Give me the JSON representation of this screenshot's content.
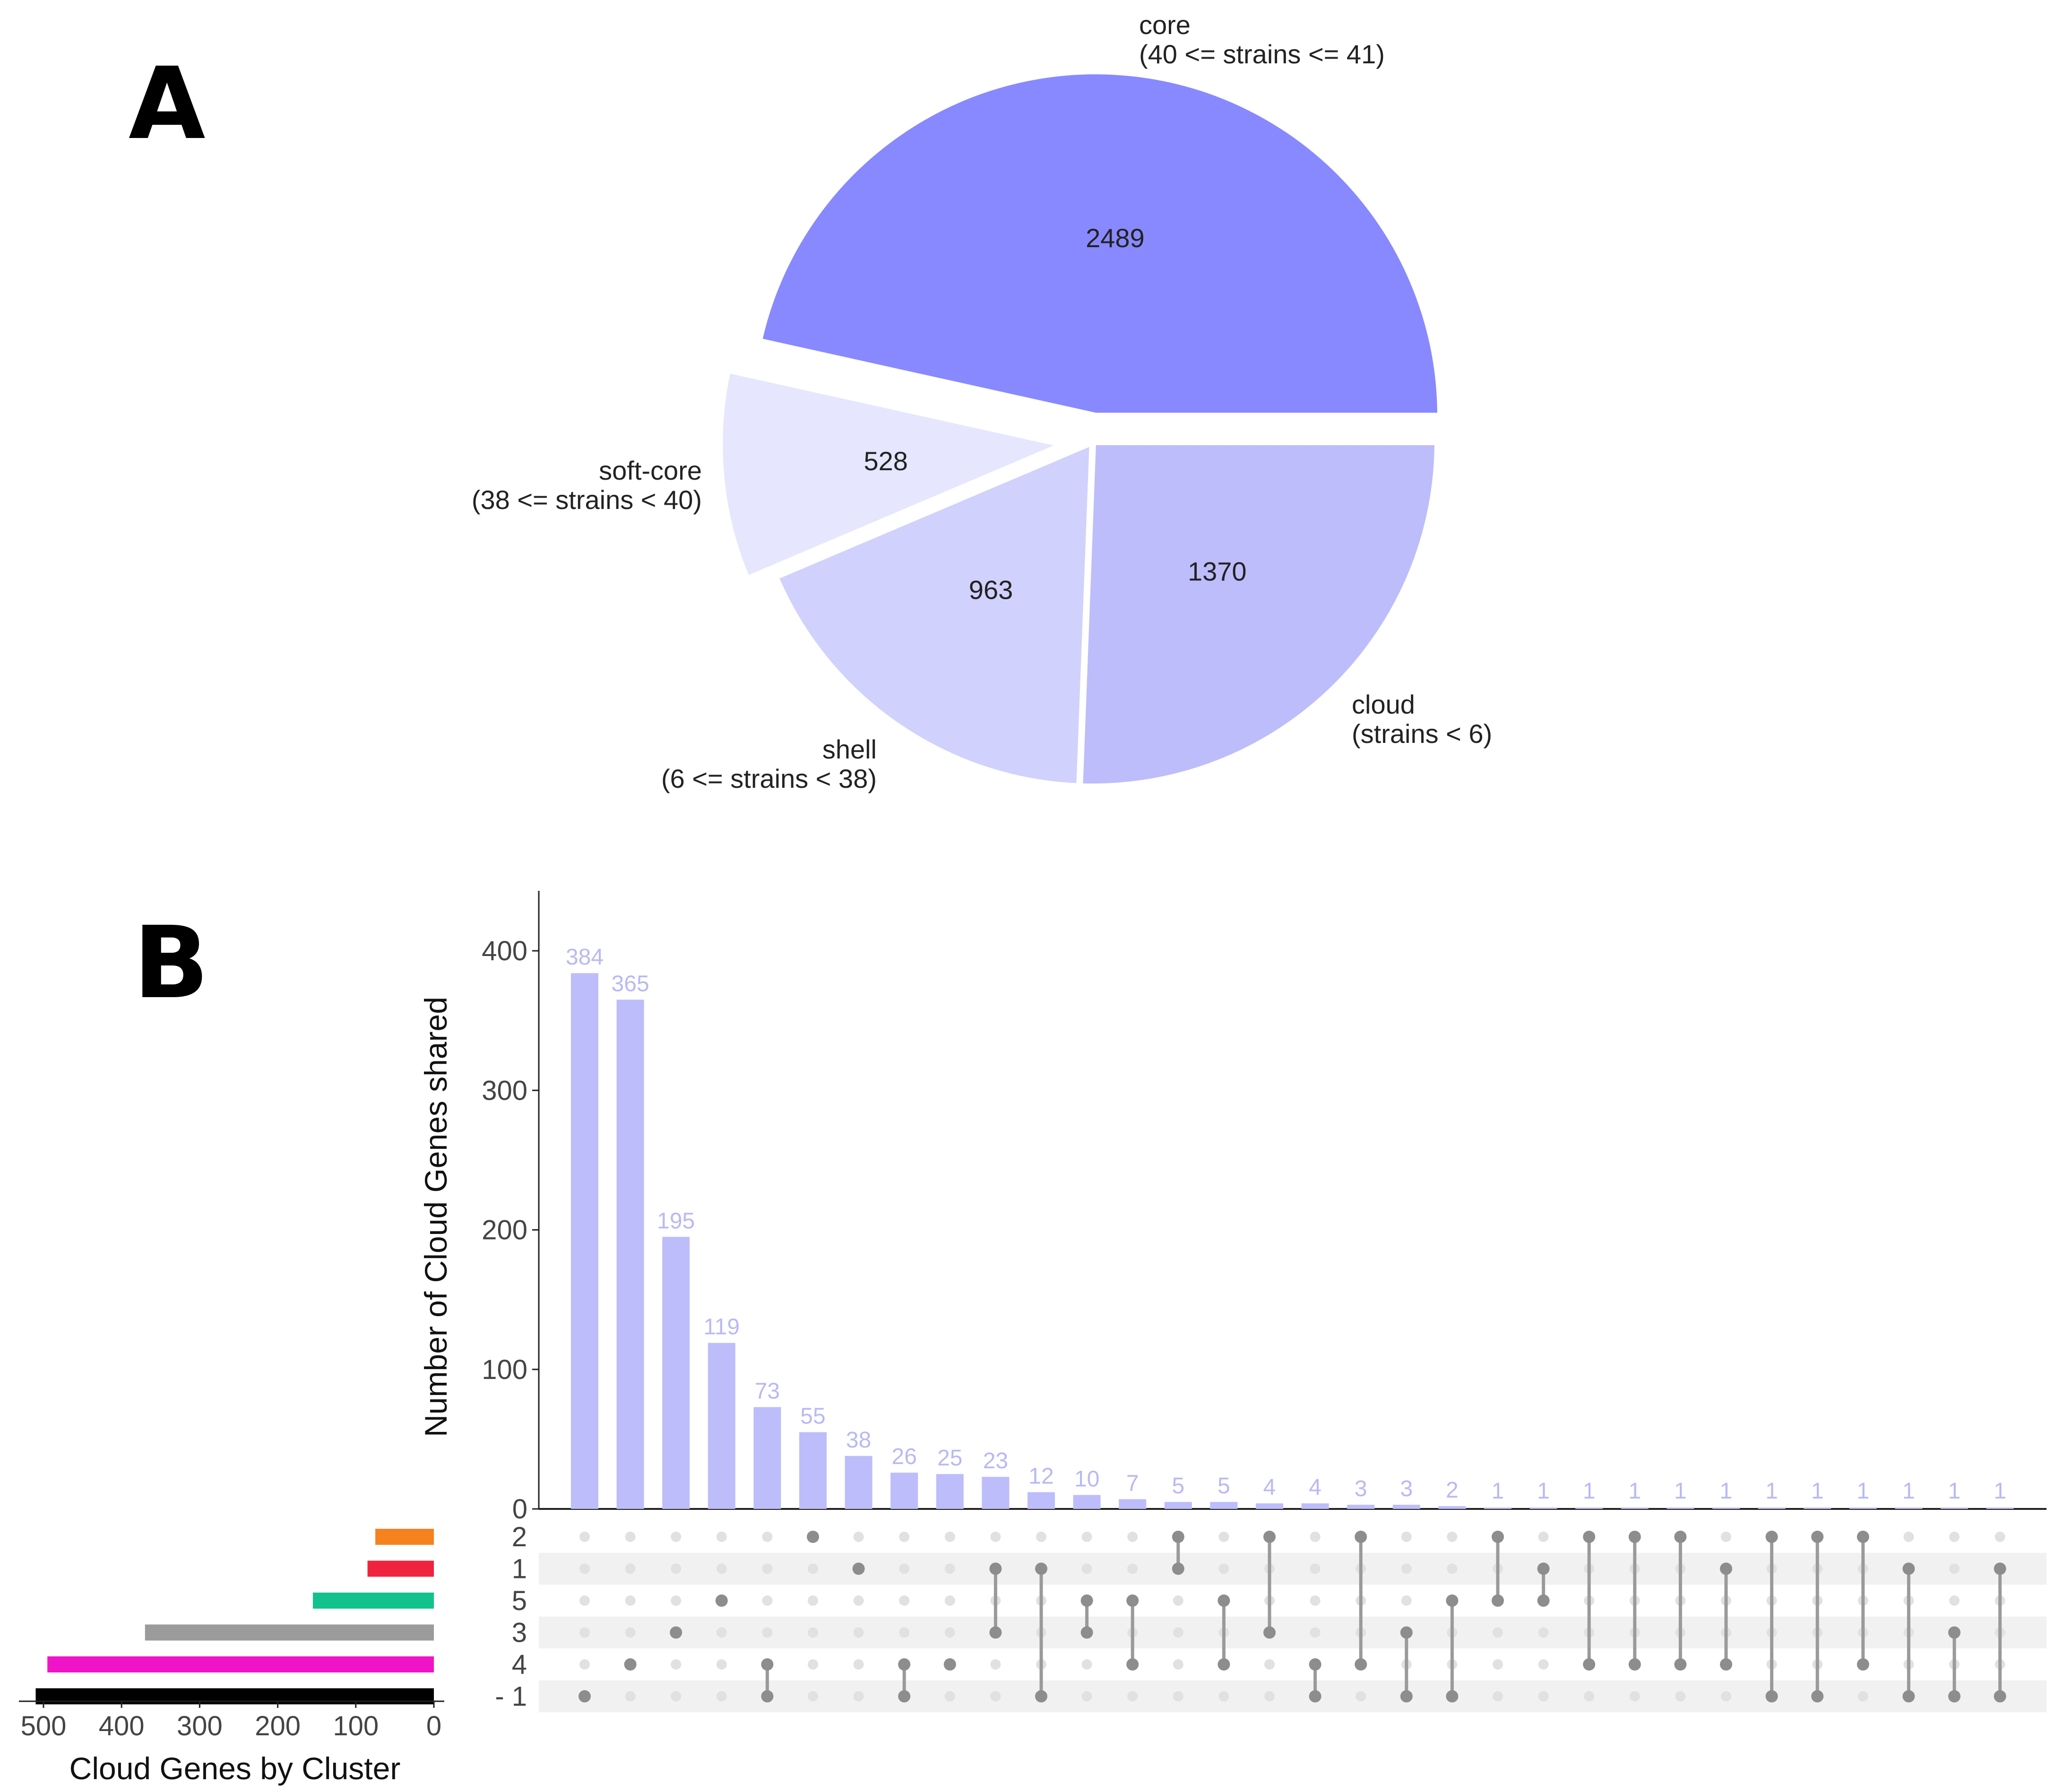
{
  "panels": {
    "a": "A",
    "b": "B"
  },
  "chart_data": [
    {
      "type": "pie",
      "title": "",
      "slices": [
        {
          "label": "core",
          "sublabel": "(40 <= strains <= 41)",
          "value": 2489,
          "color": "#8889ff"
        },
        {
          "label": "cloud",
          "sublabel": "(strains < 6)",
          "value": 1370,
          "color": "#bdbdfb"
        },
        {
          "label": "shell",
          "sublabel": "(6 <= strains < 38)",
          "value": 963,
          "color": "#d1d1fd"
        },
        {
          "label": "soft-core",
          "sublabel": "(38 <= strains < 40)",
          "value": 528,
          "color": "#e6e6fe"
        }
      ]
    },
    {
      "type": "bar",
      "title": "",
      "ylabel": "Number of Cloud Genes shared",
      "ylim": [
        0,
        440
      ],
      "yticks": [
        0,
        100,
        200,
        300,
        400
      ],
      "bar_color": "#bdbdfb",
      "values": [
        384,
        365,
        195,
        119,
        73,
        55,
        38,
        26,
        25,
        23,
        12,
        10,
        7,
        5,
        5,
        4,
        4,
        3,
        3,
        2,
        1,
        1,
        1,
        1,
        1,
        1,
        1,
        1,
        1,
        1,
        1,
        1
      ],
      "labels": [
        "384",
        "365",
        "195",
        "119",
        "73",
        "55",
        "38",
        "26",
        "25",
        "23",
        "12",
        "10",
        "7",
        "5",
        "5",
        "4",
        "4",
        "3",
        "3",
        "2",
        "1",
        "1",
        "1",
        "1",
        "1",
        "1",
        "1",
        "1",
        "1",
        "1",
        "1",
        "1"
      ],
      "sets": [
        "2",
        "1",
        "5",
        "3",
        "4",
        "- 1"
      ],
      "intersections": [
        [
          "- 1"
        ],
        [
          "4"
        ],
        [
          "3"
        ],
        [
          "5"
        ],
        [
          "4",
          "- 1"
        ],
        [
          "2"
        ],
        [
          "1"
        ],
        [
          "4",
          "- 1"
        ],
        [
          "4"
        ],
        [
          "3",
          "1"
        ],
        [
          "1",
          "- 1"
        ],
        [
          "3",
          "5"
        ],
        [
          "4",
          "5"
        ],
        [
          "2",
          "1"
        ],
        [
          "4",
          "5"
        ],
        [
          "2",
          "3"
        ],
        [
          "- 1",
          "4"
        ],
        [
          "2",
          "4"
        ],
        [
          "- 1",
          "3"
        ],
        [
          "- 1",
          "5"
        ],
        [
          "2",
          "5"
        ],
        [
          "1",
          "5"
        ],
        [
          "2",
          "4"
        ],
        [
          "2",
          "4"
        ],
        [
          "2",
          "4"
        ],
        [
          "1",
          "4"
        ],
        [
          "2",
          "- 1"
        ],
        [
          "2",
          "- 1"
        ],
        [
          "2",
          "4"
        ],
        [
          "1",
          "- 1"
        ],
        [
          "3",
          "- 1"
        ],
        [
          "1",
          "- 1"
        ]
      ]
    },
    {
      "type": "bar",
      "orientation": "horizontal",
      "title": "",
      "xlabel": "Cloud Genes by Cluster",
      "xlim": [
        530,
        0
      ],
      "xticks": [
        500,
        400,
        300,
        200,
        100,
        0
      ],
      "categories": [
        "2",
        "1",
        "5",
        "3",
        "4",
        "- 1"
      ],
      "values": [
        75,
        85,
        155,
        370,
        495,
        510
      ],
      "colors": [
        "#f5821f",
        "#f0233f",
        "#12c28c",
        "#9b9b9b",
        "#f014c8",
        "#000000"
      ]
    }
  ]
}
